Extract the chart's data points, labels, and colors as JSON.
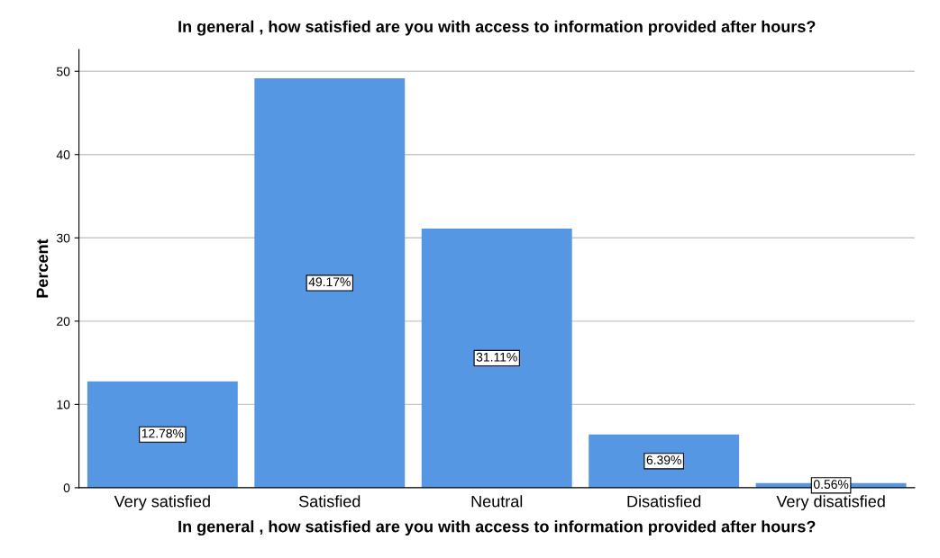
{
  "chart_data": {
    "type": "bar",
    "title": "In general , how satisfied are you with access to information provided after hours?",
    "xlabel": "In general , how satisfied are you with access to information provided after hours?",
    "ylabel": "Percent",
    "categories": [
      "Very satisfied",
      "Satisfied",
      "Neutral",
      "Disatisfied",
      "Very disatisfied"
    ],
    "values": [
      12.78,
      49.17,
      31.11,
      6.39,
      0.56
    ],
    "value_labels": [
      "12.78%",
      "49.17%",
      "31.11%",
      "6.39%",
      "0.56%"
    ],
    "color": "#5597e2",
    "ylim": [
      0,
      52.6
    ],
    "yticks": [
      0,
      10,
      20,
      30,
      40,
      50
    ],
    "grid": "y",
    "legend": false
  }
}
